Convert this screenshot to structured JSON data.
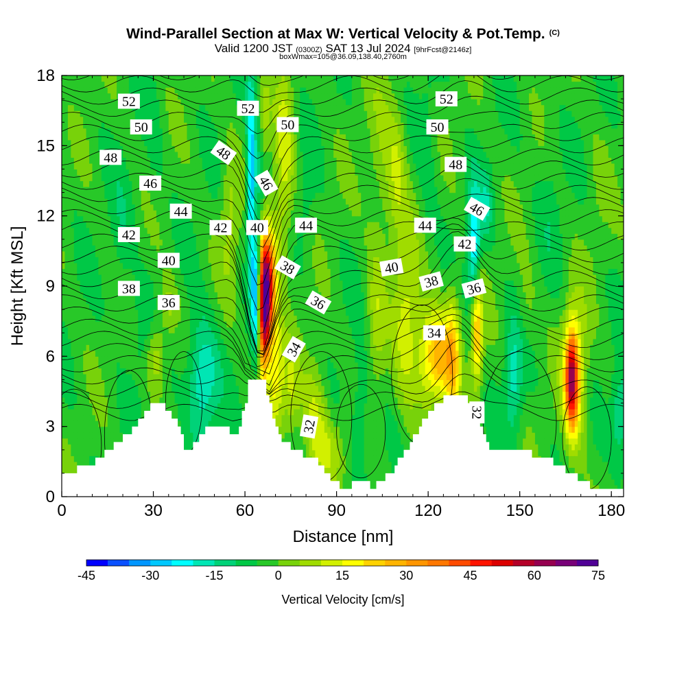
{
  "chart_data": {
    "type": "heatmap",
    "title": "Wind-Parallel Section at Max W: Vertical Velocity & Pot.Temp.",
    "copyright": "(C)",
    "subtitle_main": "Valid 1200 JST",
    "subtitle_z": "(0300Z)",
    "subtitle_date": "SAT 13 Jul 2024",
    "subtitle_fcst": "[9hrFcst@2146z]",
    "subtitle2": "boxWmax=105@36.09,138.40,2760m",
    "xlabel": "Distance [nm]",
    "ylabel": "Height [Kft MSL]",
    "xlim": [
      0,
      184
    ],
    "ylim": [
      0,
      18
    ],
    "x_ticks": [
      "0",
      "30",
      "60",
      "90",
      "120",
      "150",
      "180"
    ],
    "y_ticks": [
      "0",
      "3",
      "6",
      "9",
      "12",
      "15",
      "18"
    ],
    "colorbar": {
      "label": "Vertical Velocity [cm/s]",
      "ticks": [
        "-45",
        "-30",
        "-15",
        "0",
        "15",
        "30",
        "45",
        "60",
        "75"
      ],
      "colors": [
        "#0000ff",
        "#0a50ff",
        "#0096ff",
        "#00c8ff",
        "#00ffff",
        "#00e6b4",
        "#00d278",
        "#00c846",
        "#28c828",
        "#78d20a",
        "#a0dc00",
        "#d2f000",
        "#ffff00",
        "#ffd200",
        "#ffb400",
        "#ff9600",
        "#ff7800",
        "#ff4b00",
        "#ff1400",
        "#dc0000",
        "#b40028",
        "#960050",
        "#780078",
        "#500096"
      ]
    },
    "theta_labels": [
      {
        "value": "52",
        "x": 22,
        "y": 16.9,
        "rot": 0
      },
      {
        "value": "50",
        "x": 26,
        "y": 15.8,
        "rot": 0
      },
      {
        "value": "48",
        "x": 16,
        "y": 14.5,
        "rot": 0
      },
      {
        "value": "46",
        "x": 29,
        "y": 13.4,
        "rot": 0
      },
      {
        "value": "44",
        "x": 39,
        "y": 12.2,
        "rot": 0
      },
      {
        "value": "42",
        "x": 22,
        "y": 11.2,
        "rot": 0
      },
      {
        "value": "40",
        "x": 35,
        "y": 10.1,
        "rot": 0
      },
      {
        "value": "38",
        "x": 22,
        "y": 8.9,
        "rot": 0
      },
      {
        "value": "36",
        "x": 35,
        "y": 8.3,
        "rot": 0
      },
      {
        "value": "52",
        "x": 61,
        "y": 16.6,
        "rot": 0
      },
      {
        "value": "50",
        "x": 74,
        "y": 15.9,
        "rot": 0
      },
      {
        "value": "48",
        "x": 53,
        "y": 14.7,
        "rot": 35
      },
      {
        "value": "46",
        "x": 67,
        "y": 13.4,
        "rot": 60
      },
      {
        "value": "44",
        "x": 80,
        "y": 11.6,
        "rot": 0
      },
      {
        "value": "42",
        "x": 52,
        "y": 11.5,
        "rot": 0
      },
      {
        "value": "40",
        "x": 64,
        "y": 11.5,
        "rot": 0
      },
      {
        "value": "38",
        "x": 74,
        "y": 9.8,
        "rot": 30
      },
      {
        "value": "36",
        "x": 84,
        "y": 8.3,
        "rot": 30
      },
      {
        "value": "34",
        "x": 76,
        "y": 6.3,
        "rot": -60
      },
      {
        "value": "32",
        "x": 81,
        "y": 3.0,
        "rot": -80
      },
      {
        "value": "52",
        "x": 126,
        "y": 17.0,
        "rot": 0
      },
      {
        "value": "50",
        "x": 123,
        "y": 15.8,
        "rot": 0
      },
      {
        "value": "48",
        "x": 129,
        "y": 14.2,
        "rot": 0
      },
      {
        "value": "46",
        "x": 136,
        "y": 12.3,
        "rot": 30
      },
      {
        "value": "44",
        "x": 119,
        "y": 11.6,
        "rot": 0
      },
      {
        "value": "42",
        "x": 132,
        "y": 10.8,
        "rot": 0
      },
      {
        "value": "40",
        "x": 108,
        "y": 9.8,
        "rot": -10
      },
      {
        "value": "38",
        "x": 121,
        "y": 9.2,
        "rot": -15
      },
      {
        "value": "36",
        "x": 135,
        "y": 8.9,
        "rot": -15
      },
      {
        "value": "34",
        "x": 122,
        "y": 7.0,
        "rot": 0
      },
      {
        "value": "32",
        "x": 136,
        "y": 3.6,
        "rot": 90
      }
    ]
  }
}
